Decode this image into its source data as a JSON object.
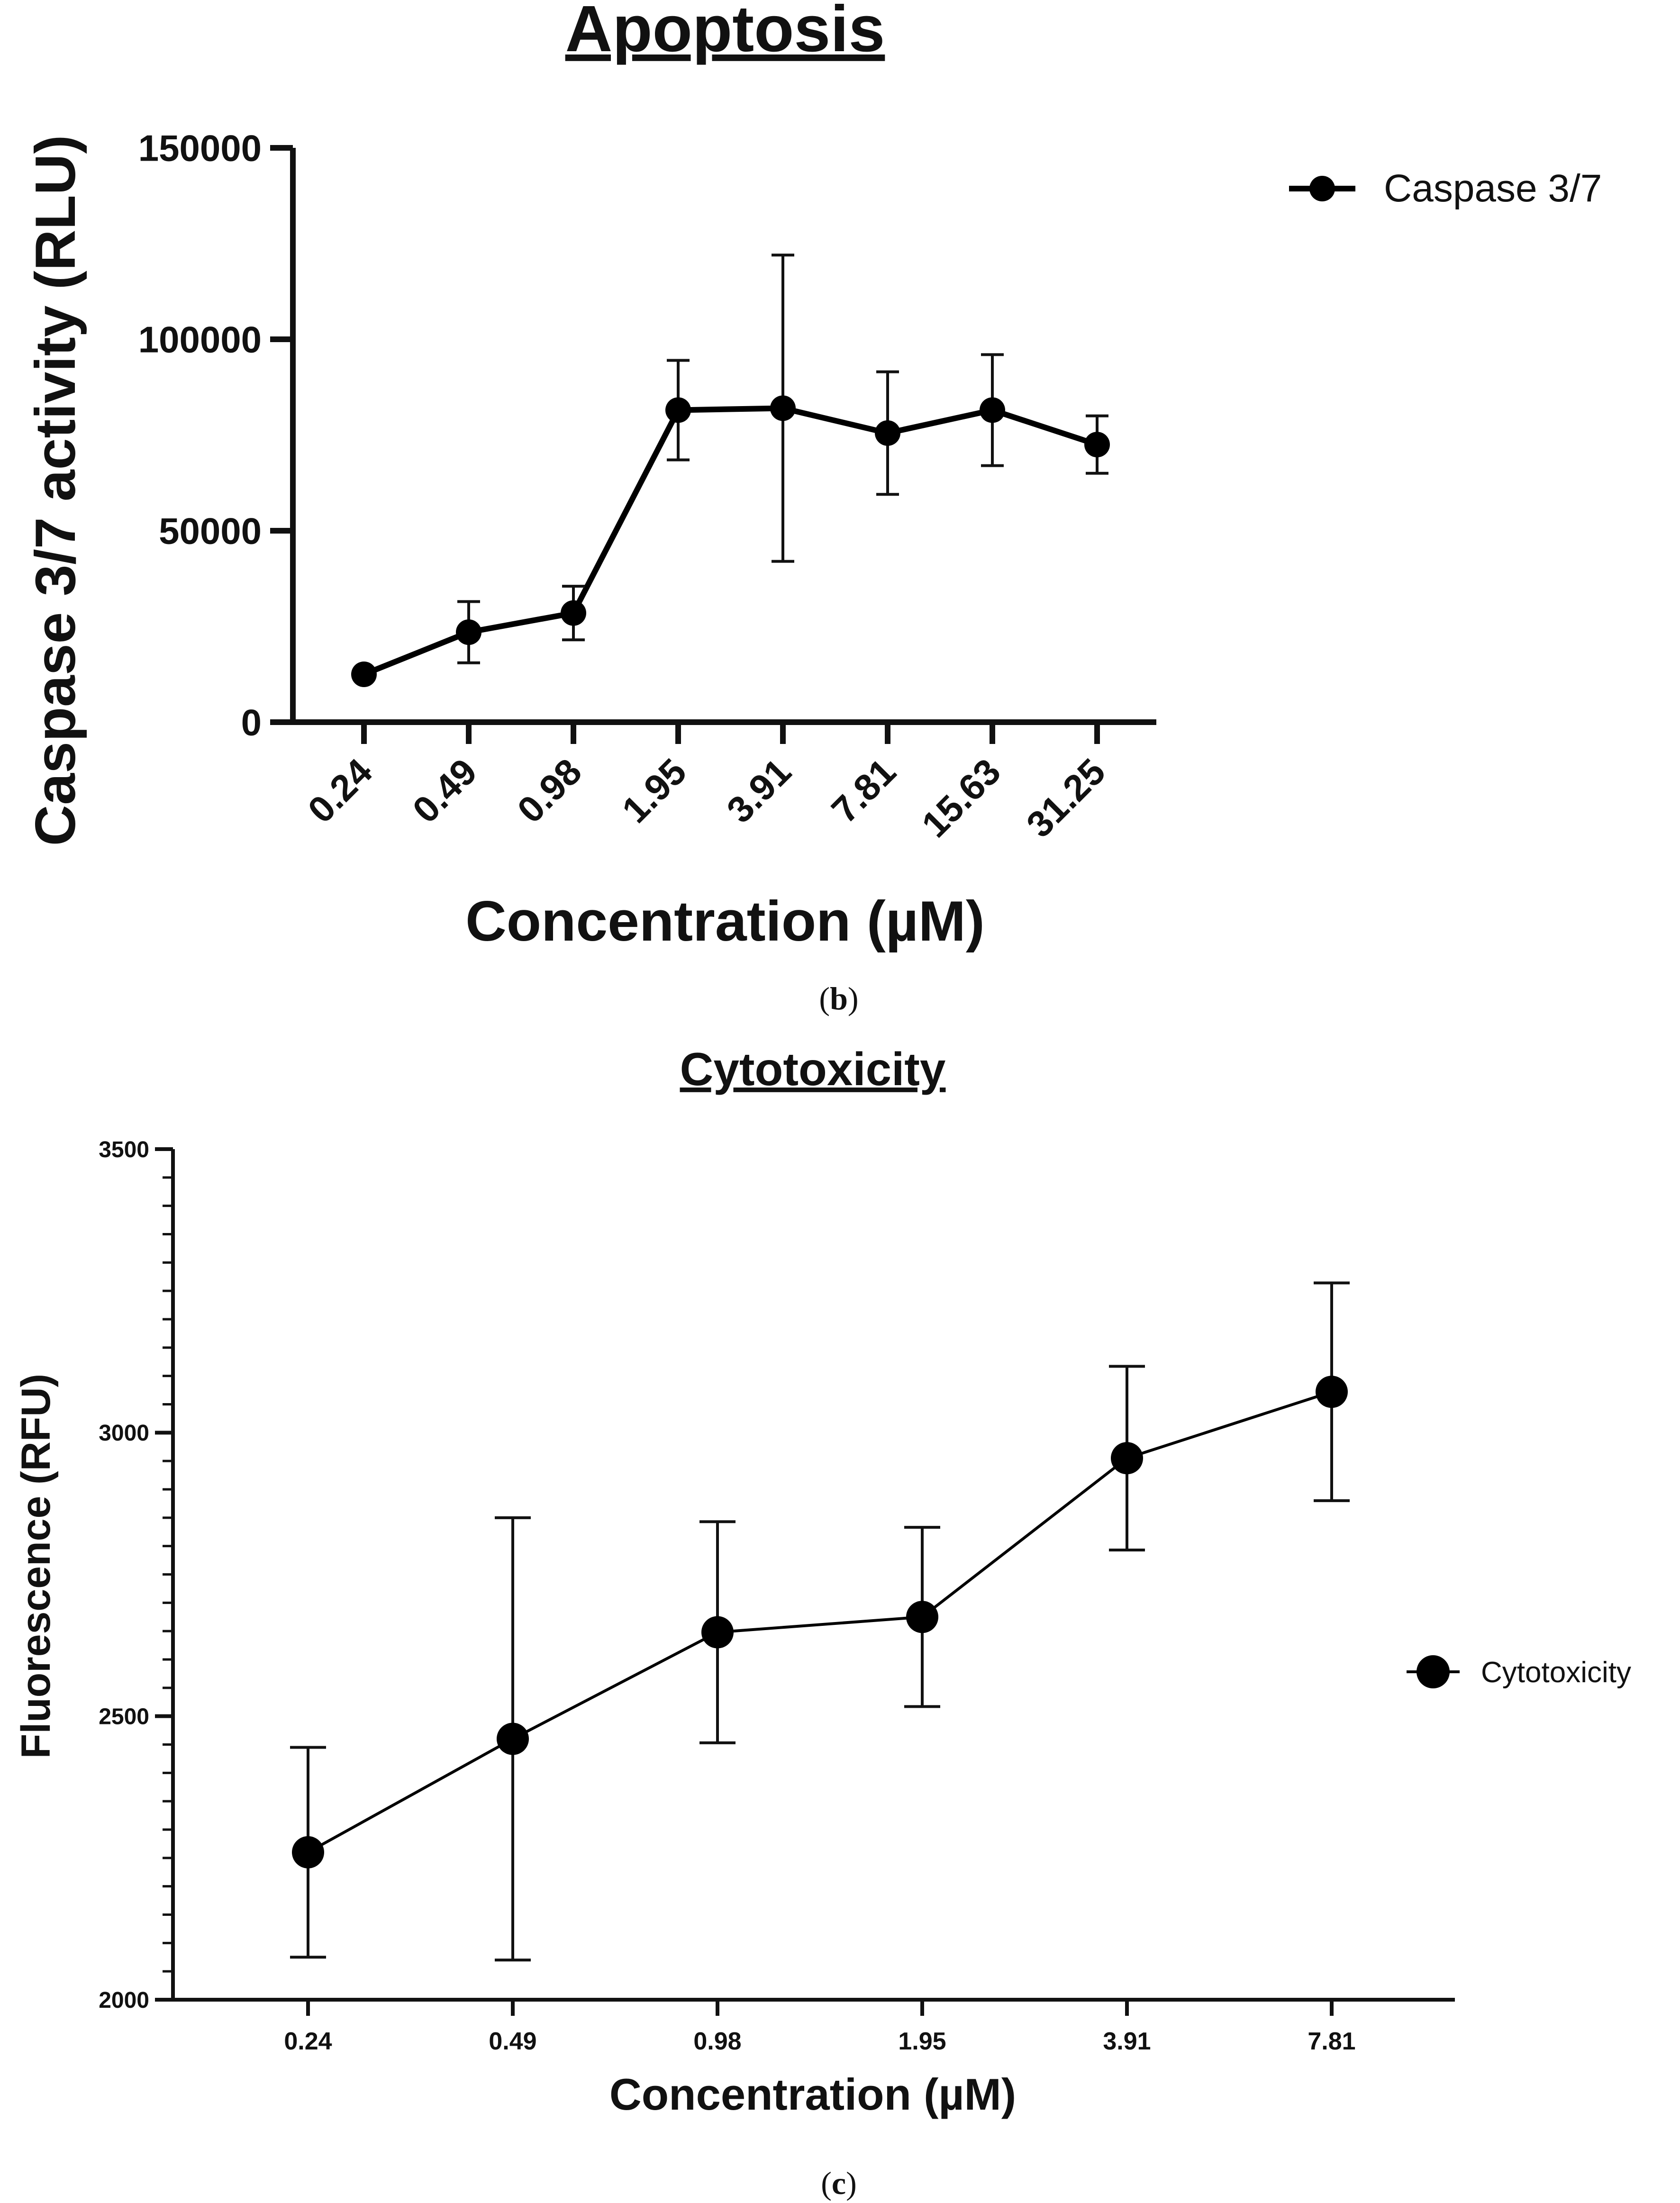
{
  "chart_data": [
    {
      "type": "line",
      "panel_label_prefix": "(",
      "panel_label_letter": "b",
      "panel_label_suffix": ")",
      "title": "Apoptosis",
      "xlabel": "Concentration (µM)",
      "ylabel": "Caspase 3/7 activity (RLU)",
      "categories": [
        "0.24",
        "0.49",
        "0.98",
        "1.95",
        "3.91",
        "7.81",
        "15.63",
        "31.25"
      ],
      "ylim": [
        0,
        150000
      ],
      "yticks": [
        0,
        50000,
        100000,
        150000
      ],
      "ytick_labels": [
        "0",
        "50000",
        "100000",
        "150000"
      ],
      "grid": false,
      "legend_position": "top-right",
      "series": [
        {
          "name": "Caspase 3/7",
          "color": "#000000",
          "values": [
            12500,
            23500,
            28500,
            81500,
            82000,
            75500,
            81500,
            72500
          ],
          "error": [
            0,
            8000,
            7000,
            13000,
            40000,
            16000,
            14500,
            7500
          ]
        }
      ]
    },
    {
      "type": "line",
      "panel_label_prefix": "(",
      "panel_label_letter": "c",
      "panel_label_suffix": ")",
      "title": "Cytotoxicity",
      "xlabel": "Concentration (µM)",
      "ylabel": "Fluorescence (RFU)",
      "categories": [
        "0.24",
        "0.49",
        "0.98",
        "1.95",
        "3.91",
        "7.81"
      ],
      "ylim": [
        2000,
        3500
      ],
      "yticks": [
        2000,
        2500,
        3000,
        3500
      ],
      "ytick_labels": [
        "2000",
        "2500",
        "3000",
        "3500"
      ],
      "y_minor_step": 50,
      "grid": false,
      "legend_position": "right",
      "series": [
        {
          "name": "Cytotoxicity",
          "color": "#000000",
          "values": [
            2260,
            2460,
            2648,
            2675,
            2955,
            3072
          ],
          "error": [
            185,
            390,
            195,
            158,
            162,
            192
          ]
        }
      ]
    }
  ]
}
